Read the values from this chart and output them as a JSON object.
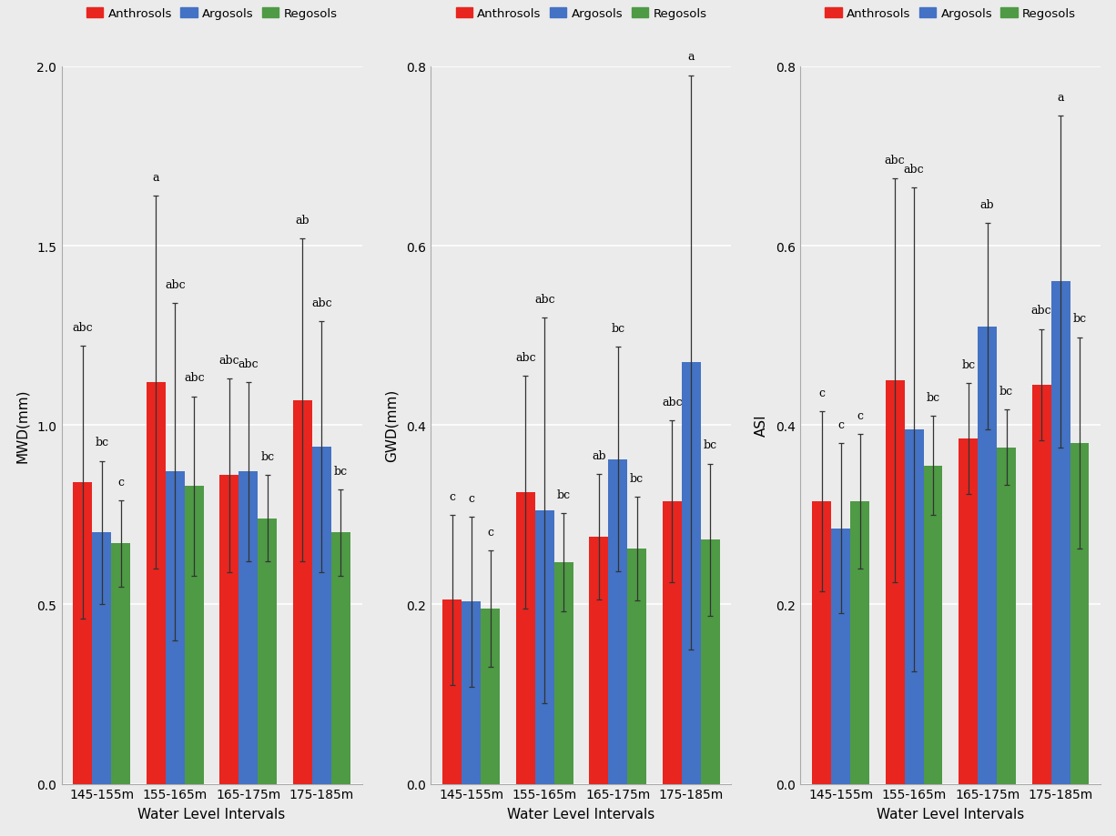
{
  "categories": [
    "145-155m",
    "155-165m",
    "165-175m",
    "175-185m"
  ],
  "colors": [
    "#E8251F",
    "#4472C4",
    "#4E9A45"
  ],
  "species": [
    "Anthrosols",
    "Argosols",
    "Regosols"
  ],
  "background_color": "#EBEBEB",
  "panel_bg": "#EBEBEB",
  "MWD": {
    "ylabel": "MWD(mm)",
    "ylim": [
      0.0,
      2.0
    ],
    "yticks": [
      0.0,
      0.5,
      1.0,
      1.5,
      2.0
    ],
    "values": [
      [
        0.84,
        0.7,
        0.67
      ],
      [
        1.12,
        0.87,
        0.83
      ],
      [
        0.86,
        0.87,
        0.74
      ],
      [
        1.07,
        0.94,
        0.7
      ]
    ],
    "errors": [
      [
        0.38,
        0.2,
        0.12
      ],
      [
        0.52,
        0.47,
        0.25
      ],
      [
        0.27,
        0.25,
        0.12
      ],
      [
        0.45,
        0.35,
        0.12
      ]
    ],
    "labels": [
      [
        "abc",
        "bc",
        "c"
      ],
      [
        "a",
        "abc",
        "abc"
      ],
      [
        "abc",
        "abc",
        "bc"
      ],
      [
        "ab",
        "abc",
        "bc"
      ]
    ]
  },
  "GWD": {
    "ylabel": "GWD(mm)",
    "ylim": [
      0.0,
      0.8
    ],
    "yticks": [
      0.0,
      0.2,
      0.4,
      0.6,
      0.8
    ],
    "values": [
      [
        0.205,
        0.203,
        0.195
      ],
      [
        0.325,
        0.305,
        0.247
      ],
      [
        0.275,
        0.362,
        0.262
      ],
      [
        0.315,
        0.47,
        0.272
      ]
    ],
    "errors": [
      [
        0.095,
        0.095,
        0.065
      ],
      [
        0.13,
        0.215,
        0.055
      ],
      [
        0.07,
        0.125,
        0.058
      ],
      [
        0.09,
        0.32,
        0.085
      ]
    ],
    "labels": [
      [
        "c",
        "c",
        "c"
      ],
      [
        "abc",
        "abc",
        "bc"
      ],
      [
        "ab",
        "bc",
        "bc"
      ],
      [
        "abc",
        "a",
        "bc"
      ]
    ]
  },
  "ASI": {
    "ylabel": "ASI",
    "ylim": [
      0.0,
      0.8
    ],
    "yticks": [
      0.0,
      0.2,
      0.4,
      0.6,
      0.8
    ],
    "values": [
      [
        0.315,
        0.285,
        0.315
      ],
      [
        0.45,
        0.395,
        0.355
      ],
      [
        0.385,
        0.51,
        0.375
      ],
      [
        0.445,
        0.56,
        0.38
      ]
    ],
    "errors": [
      [
        0.1,
        0.095,
        0.075
      ],
      [
        0.225,
        0.27,
        0.055
      ],
      [
        0.062,
        0.115,
        0.042
      ],
      [
        0.062,
        0.185,
        0.118
      ]
    ],
    "labels": [
      [
        "c",
        "c",
        "c"
      ],
      [
        "abc",
        "abc",
        "bc"
      ],
      [
        "bc",
        "ab",
        "bc"
      ],
      [
        "abc",
        "a",
        "bc"
      ]
    ]
  }
}
